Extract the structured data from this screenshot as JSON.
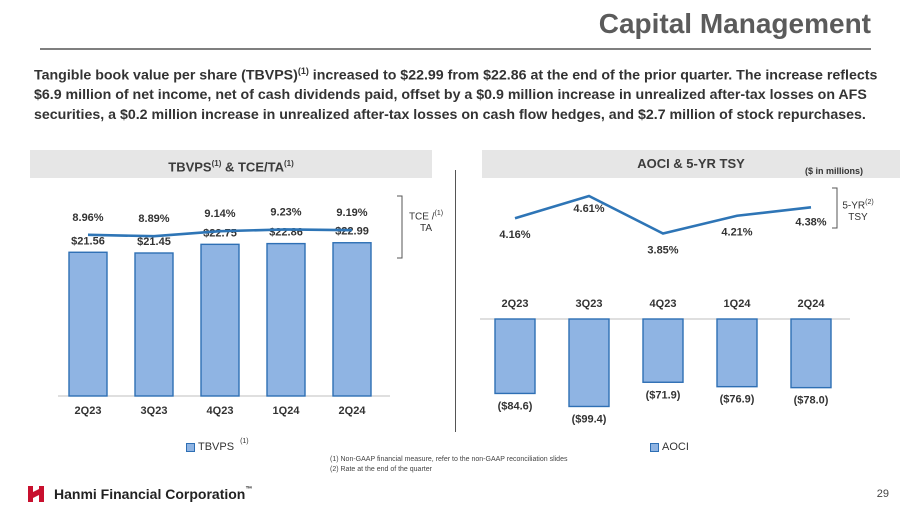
{
  "header": {
    "title": "Capital Management"
  },
  "intro": {
    "p1": "Tangible book value per share (TBVPS)",
    "sup": "(1)",
    "p2": " increased to $22.99 from $22.86 at the end of the prior quarter. The increase reflects $6.9 million of net income, net of cash dividends paid, offset by a $0.9 million increase in unrealized after-tax losses on AFS securities, a $0.2 million increase in unrealized after-tax losses on cash flow hedges, and $2.7 million of stock repurchases."
  },
  "left_panel": {
    "heading_a": "TBVPS",
    "heading_sup1": "(1)",
    "heading_b": " & TCE/TA",
    "heading_sup2": "(1)",
    "side_label_a": "TCE /",
    "side_label_sup": "(1)",
    "side_label_b": "TA",
    "legend": "TBVPS",
    "legend_sup": "(1)"
  },
  "right_panel": {
    "heading": "AOCI & 5-YR TSY",
    "units": "($ in millions)",
    "side_label_a": "5-YR",
    "side_label_sup": "(2)",
    "side_label_b": "TSY",
    "legend": "AOCI"
  },
  "chart_data": [
    {
      "type": "bar",
      "title": "TBVPS & TCE/TA",
      "categories": [
        "2Q23",
        "3Q23",
        "4Q23",
        "1Q24",
        "2Q24"
      ],
      "series": [
        {
          "name": "TBVPS",
          "values": [
            21.56,
            21.45,
            22.75,
            22.86,
            22.99
          ],
          "labels": [
            "$21.56",
            "$21.45",
            "$22.75",
            "$22.86",
            "$22.99"
          ]
        },
        {
          "name": "TCE/TA",
          "kind": "line",
          "values": [
            8.96,
            8.89,
            9.14,
            9.23,
            9.19
          ],
          "labels": [
            "8.96%",
            "8.89%",
            "9.14%",
            "9.23%",
            "9.19%"
          ]
        }
      ],
      "ylim": [
        0,
        24
      ]
    },
    {
      "type": "bar",
      "title": "AOCI & 5-YR TSY",
      "categories": [
        "2Q23",
        "3Q23",
        "4Q23",
        "1Q24",
        "2Q24"
      ],
      "series": [
        {
          "name": "AOCI",
          "values": [
            -84.6,
            -99.4,
            -71.9,
            -76.9,
            -78.0
          ],
          "labels": [
            "($84.6)",
            "($99.4)",
            "($71.9)",
            "($76.9)",
            "($78.0)"
          ]
        },
        {
          "name": "5-YR TSY",
          "kind": "line",
          "values": [
            4.16,
            4.61,
            3.85,
            4.21,
            4.38
          ],
          "labels": [
            "4.16%",
            "4.61%",
            "3.85%",
            "4.21%",
            "4.38%"
          ]
        }
      ],
      "ylim": [
        -100,
        0
      ]
    }
  ],
  "footnotes": [
    "(1)    Non-GAAP financial measure, refer to the non-GAAP reconciliation slides",
    "(2)    Rate at the end of the quarter"
  ],
  "footer": {
    "company": "Hanmi Financial Corporation",
    "trademark": "™",
    "page": "29"
  },
  "colors": {
    "bar_fill": "#8fb4e3",
    "bar_stroke": "#2e6fb4",
    "line": "#2e75b6",
    "brand_red": "#c8102e"
  }
}
